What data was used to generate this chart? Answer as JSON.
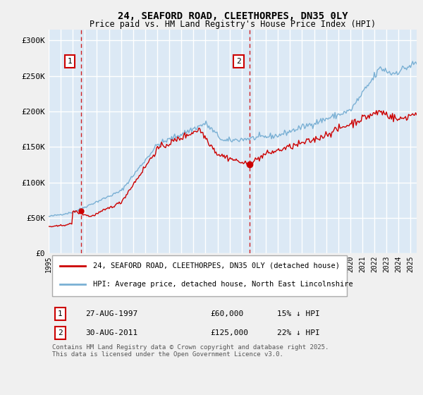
{
  "title": "24, SEAFORD ROAD, CLEETHORPES, DN35 0LY",
  "subtitle": "Price paid vs. HM Land Registry's House Price Index (HPI)",
  "ylabel_ticks": [
    "£0",
    "£50K",
    "£100K",
    "£150K",
    "£200K",
    "£250K",
    "£300K"
  ],
  "ytick_values": [
    0,
    50000,
    100000,
    150000,
    200000,
    250000,
    300000
  ],
  "ylim": [
    0,
    315000
  ],
  "xlim_start": 1995.0,
  "xlim_end": 2025.5,
  "fig_bg_color": "#f0f0f0",
  "plot_bg_color": "#dce9f5",
  "grid_color": "#ffffff",
  "red_line_color": "#cc0000",
  "blue_line_color": "#7ab0d4",
  "vline_color": "#cc0000",
  "sale1_year": 1997.66,
  "sale1_price": 60000,
  "sale1_label": "1",
  "sale1_date": "27-AUG-1997",
  "sale1_amount": "£60,000",
  "sale1_hpi": "15% ↓ HPI",
  "sale2_year": 2011.66,
  "sale2_price": 125000,
  "sale2_label": "2",
  "sale2_date": "30-AUG-2011",
  "sale2_amount": "£125,000",
  "sale2_hpi": "22% ↓ HPI",
  "legend_line1": "24, SEAFORD ROAD, CLEETHORPES, DN35 0LY (detached house)",
  "legend_line2": "HPI: Average price, detached house, North East Lincolnshire",
  "footnote": "Contains HM Land Registry data © Crown copyright and database right 2025.\nThis data is licensed under the Open Government Licence v3.0.",
  "marker1_y": 270000,
  "marker2_y": 270000
}
